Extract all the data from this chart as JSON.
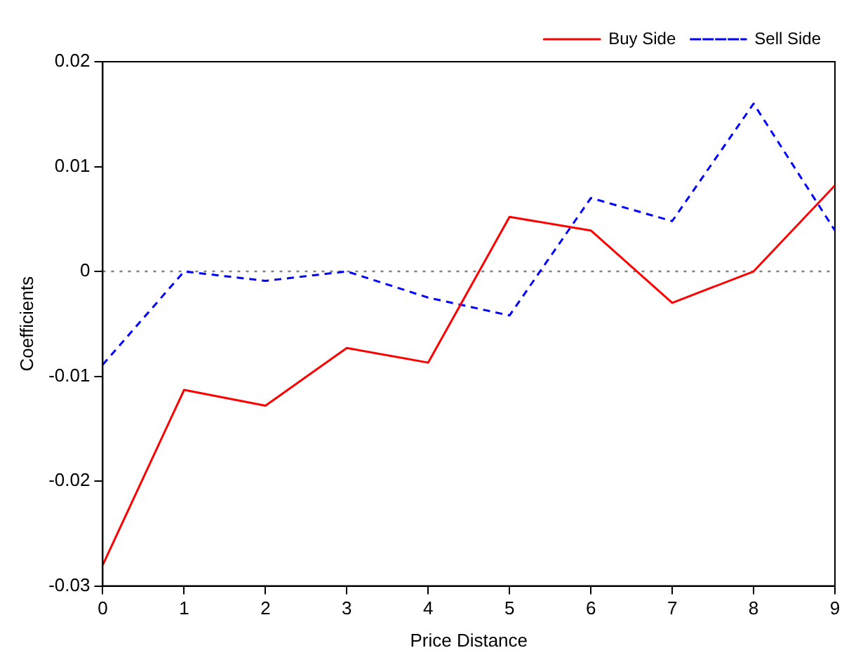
{
  "chart_data": {
    "type": "line",
    "xlabel": "Price Distance",
    "ylabel": "Coefficients",
    "x": [
      0,
      1,
      2,
      3,
      4,
      5,
      6,
      7,
      8,
      9
    ],
    "series": [
      {
        "name": "Buy Side",
        "color": "#ff0000",
        "line_style": "solid",
        "values": [
          -0.028,
          -0.0113,
          -0.0128,
          -0.0073,
          -0.0087,
          0.0052,
          0.0039,
          -0.003,
          0,
          0.0082
        ]
      },
      {
        "name": "Sell Side",
        "color": "#0000ff",
        "line_style": "dashed",
        "values": [
          -0.0089,
          0,
          -0.0009,
          0,
          -0.0025,
          -0.0042,
          0.007,
          0.0048,
          0.016,
          0.0039
        ]
      }
    ],
    "xlim": [
      0,
      9
    ],
    "xticks": [
      0,
      1,
      2,
      3,
      4,
      5,
      6,
      7,
      8,
      9
    ],
    "ylim": [
      -0.03,
      0.02
    ],
    "yticks": [
      -0.03,
      -0.02,
      -0.01,
      0,
      0.01,
      0.02
    ],
    "ref_lines": [
      {
        "axis": "y",
        "value": 0,
        "color": "#808080",
        "line_style": "dotted"
      }
    ],
    "grid": false,
    "legend": "top right",
    "marker": "none"
  }
}
